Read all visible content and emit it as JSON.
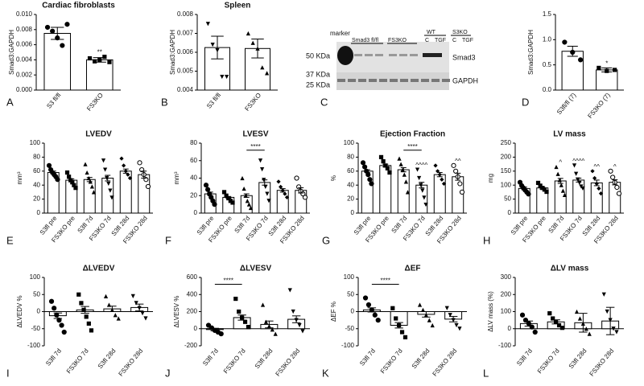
{
  "chart_data": [
    {
      "type": "bar",
      "panel": "A",
      "title": "Cardiac fibroblasts",
      "ylabel": "Smad3:GAPDH",
      "categories": [
        "S3 fl/fl",
        "FS3KO"
      ],
      "values": [
        0.0075,
        0.004
      ],
      "errors": [
        0.0008,
        0.0003
      ],
      "points": [
        [
          0.0083,
          0.0078,
          0.0069,
          0.0059,
          0.0087
        ],
        [
          0.0042,
          0.0038,
          0.004,
          0.0044,
          0.0037
        ]
      ],
      "markers": [
        "circle",
        "square"
      ],
      "sig": [
        null,
        "**"
      ],
      "ylim": [
        0,
        0.01
      ],
      "yticks": [
        {
          "value": 0,
          "label": "0.000"
        },
        {
          "value": 0.002,
          "label": "0.002"
        },
        {
          "value": 0.004,
          "label": "0.004"
        },
        {
          "value": 0.006,
          "label": "0.006"
        },
        {
          "value": 0.008,
          "label": "0.008"
        },
        {
          "value": 0.01,
          "label": "0.010"
        }
      ]
    },
    {
      "type": "bar",
      "panel": "B",
      "title": "Spleen",
      "ylabel": "Smad3:GAPDH",
      "categories": [
        "S3 fl/fl",
        "FS3KO"
      ],
      "values": [
        0.00625,
        0.0062
      ],
      "errors": [
        0.0006,
        0.0005
      ],
      "points": [
        [
          0.0075,
          0.0064,
          0.0061,
          0.0047,
          0.0047
        ],
        [
          0.007,
          0.0065,
          0.0062,
          0.0052,
          0.0049
        ]
      ],
      "markers": [
        "triangle-down",
        "triangle"
      ],
      "ylim": [
        0.004,
        0.008
      ],
      "yticks": [
        0.004,
        0.005,
        0.006,
        0.007,
        0.008
      ]
    },
    {
      "type": "bar",
      "panel": "D",
      "ylabel": "Smad3:GAPDH",
      "categories": [
        "S3fl/fl (7)",
        "FS3KO (7)"
      ],
      "values": [
        0.77,
        0.4
      ],
      "errors": [
        0.1,
        0.04
      ],
      "points": [
        [
          0.95,
          0.75,
          0.6
        ],
        [
          0.44,
          0.38,
          0.4
        ]
      ],
      "markers": [
        "circle",
        "square"
      ],
      "sig": [
        null,
        "*"
      ],
      "ylim": [
        0,
        1.5
      ],
      "yticks": [
        {
          "value": 0,
          "label": "0.0"
        },
        0.5,
        {
          "value": 1,
          "label": "1.0"
        },
        1.5
      ]
    },
    {
      "type": "bar",
      "panel": "E",
      "title": "LVEDV",
      "ylabel": "mm³",
      "categories": [
        "S3fl pre",
        "FS3KO pre",
        "S3fl 7d",
        "FS3KO 7d",
        "S3fl 28d",
        "FS3KO 28d"
      ],
      "values": [
        58,
        47,
        48,
        50,
        60,
        55
      ],
      "errors": [
        2,
        2,
        3,
        4,
        3,
        5
      ],
      "points": [
        [
          68,
          62,
          58,
          55,
          52,
          48
        ],
        [
          58,
          52,
          47,
          44,
          40,
          36
        ],
        [
          70,
          58,
          50,
          45,
          38,
          30
        ],
        [
          75,
          62,
          50,
          42,
          32,
          22
        ],
        [
          78,
          68,
          60,
          55,
          50
        ],
        [
          72,
          62,
          55,
          48,
          38
        ]
      ],
      "markers": [
        "circle",
        "square",
        "triangle",
        "triangle-down",
        "diamond",
        "circle-open"
      ],
      "ylim": [
        0,
        100
      ],
      "yticks": [
        0,
        20,
        40,
        60,
        80,
        100
      ]
    },
    {
      "type": "bar",
      "panel": "F",
      "title": "LVESV",
      "ylabel": "mm³",
      "categories": [
        "S3fl pre",
        "FS3KO pre",
        "S3fl 7d",
        "FS3KO 7d",
        "S3fl 28d",
        "FS3KO 28d"
      ],
      "values": [
        22,
        18,
        20,
        35,
        26,
        26
      ],
      "errors": [
        2,
        1,
        2,
        3,
        2,
        3
      ],
      "points": [
        [
          32,
          27,
          22,
          18,
          14,
          10
        ],
        [
          24,
          20,
          17,
          14,
          12
        ],
        [
          40,
          28,
          20,
          14,
          10,
          6
        ],
        [
          60,
          50,
          38,
          30,
          22,
          14
        ],
        [
          36,
          30,
          26,
          22,
          18
        ],
        [
          40,
          30,
          25,
          22,
          18
        ]
      ],
      "markers": [
        "circle",
        "square",
        "triangle",
        "triangle-down",
        "diamond",
        "circle-open"
      ],
      "bracket": {
        "label": "****",
        "between": [
          2,
          3
        ]
      },
      "ylim": [
        0,
        80
      ],
      "yticks": [
        0,
        20,
        40,
        60,
        80
      ]
    },
    {
      "type": "bar",
      "panel": "G",
      "title": "Ejection Fraction",
      "ylabel": "%",
      "categories": [
        "S3fl pre",
        "FS3KO pre",
        "S3fl 7d",
        "FS3KO 7d",
        "S3fl 28d",
        "FS3KO 28d"
      ],
      "values": [
        60,
        68,
        62,
        40,
        55,
        52
      ],
      "errors": [
        2,
        2,
        3,
        4,
        3,
        5
      ],
      "points": [
        [
          72,
          66,
          60,
          55,
          48,
          42
        ],
        [
          80,
          74,
          68,
          64,
          58
        ],
        [
          78,
          70,
          62,
          55,
          45,
          30
        ],
        [
          62,
          50,
          40,
          32,
          22,
          12
        ],
        [
          68,
          60,
          55,
          48,
          42
        ],
        [
          68,
          60,
          52,
          42,
          30
        ]
      ],
      "markers": [
        "circle",
        "square",
        "triangle",
        "triangle-down",
        "diamond",
        "circle-open"
      ],
      "sig": [
        null,
        null,
        null,
        "^^^^",
        null,
        "^^"
      ],
      "bracket": {
        "label": "****",
        "between": [
          2,
          3
        ]
      },
      "ylim": [
        0,
        100
      ],
      "yticks": [
        0,
        20,
        40,
        60,
        80,
        100
      ]
    },
    {
      "type": "bar",
      "panel": "H",
      "title": "LV mass",
      "ylabel": "mg",
      "categories": [
        "S3fl pre",
        "FS3KO pre",
        "S3fl 7d",
        "FS3KO 7d",
        "S3fl 28d",
        "FS3KO 28d"
      ],
      "values": [
        88,
        90,
        115,
        118,
        108,
        110
      ],
      "errors": [
        5,
        4,
        9,
        7,
        10,
        9
      ],
      "points": [
        [
          110,
          98,
          90,
          82,
          75,
          68
        ],
        [
          108,
          98,
          90,
          84,
          76
        ],
        [
          165,
          140,
          118,
          100,
          80,
          65
        ],
        [
          170,
          140,
          120,
          108,
          95,
          88
        ],
        [
          150,
          125,
          105,
          88,
          70
        ],
        [
          150,
          128,
          110,
          92,
          70
        ]
      ],
      "markers": [
        "circle",
        "square",
        "triangle",
        "triangle-down",
        "diamond",
        "circle-open"
      ],
      "sig": [
        null,
        null,
        "^",
        "^^^^",
        "^^",
        "^"
      ],
      "ylim": [
        0,
        250
      ],
      "yticks": [
        0,
        50,
        100,
        150,
        200,
        250
      ]
    },
    {
      "type": "bar",
      "panel": "I",
      "title": "ΔLVEDV",
      "ylabel": "ΔLVEDV %",
      "categories": [
        "S3fl 7d",
        "FS3KO 7d",
        "S3fl 28d",
        "FS3KO 28d"
      ],
      "values": [
        -12,
        5,
        8,
        12
      ],
      "errors": [
        8,
        10,
        8,
        10
      ],
      "points": [
        [
          30,
          10,
          -10,
          -25,
          -40,
          -60
        ],
        [
          50,
          25,
          5,
          -15,
          -35,
          -55
        ],
        [
          45,
          20,
          5,
          -10,
          -20
        ],
        [
          45,
          25,
          10,
          -5,
          -20
        ]
      ],
      "markers": [
        "circle",
        "square",
        "triangle",
        "triangle-down"
      ],
      "ylim": [
        -100,
        100
      ],
      "yticks": [
        -100,
        -50,
        0,
        50,
        100
      ]
    },
    {
      "type": "bar",
      "panel": "J",
      "title": "ΔLVESV",
      "ylabel": "ΔLVESV %",
      "categories": [
        "S3fl 7d",
        "FS3KO 7d",
        "S3fl 28d",
        "FS3KO 28d"
      ],
      "values": [
        -10,
        130,
        50,
        110
      ],
      "errors": [
        15,
        30,
        40,
        40
      ],
      "points": [
        [
          40,
          10,
          -20,
          -40,
          -60
        ],
        [
          350,
          200,
          130,
          80,
          20
        ],
        [
          280,
          80,
          30,
          -10,
          -60
        ],
        [
          450,
          200,
          100,
          40,
          -30
        ]
      ],
      "markers": [
        "circle",
        "square",
        "triangle",
        "triangle-down"
      ],
      "bracket": {
        "label": "****",
        "between": [
          0,
          1
        ]
      },
      "ylim": [
        -200,
        600
      ],
      "yticks": [
        -200,
        0,
        200,
        400,
        600
      ]
    },
    {
      "type": "bar",
      "panel": "K",
      "title": "ΔEF",
      "ylabel": "ΔEF %",
      "categories": [
        "S3fl 7d",
        "FS3KO 7d",
        "S3fl 28d",
        "FS3KO 28d"
      ],
      "values": [
        5,
        -40,
        -8,
        -22
      ],
      "errors": [
        6,
        8,
        8,
        8
      ],
      "points": [
        [
          40,
          20,
          5,
          -10,
          -25
        ],
        [
          10,
          -20,
          -40,
          -60,
          -75
        ],
        [
          20,
          5,
          -10,
          -25,
          -40
        ],
        [
          10,
          -10,
          -25,
          -40,
          -50
        ]
      ],
      "markers": [
        "circle",
        "square",
        "triangle",
        "triangle-down"
      ],
      "bracket": {
        "label": "****",
        "between": [
          0,
          1
        ]
      },
      "ylim": [
        -100,
        100
      ],
      "yticks": [
        -100,
        -50,
        0,
        50,
        100
      ]
    },
    {
      "type": "bar",
      "panel": "L",
      "title": "ΔLV mass",
      "ylabel": "ΔLV mass (%)",
      "categories": [
        "S3fl 7d",
        "FS3KO 7d",
        "S3fl 28d",
        "FS3KO 28d"
      ],
      "values": [
        30,
        40,
        35,
        45
      ],
      "errors": [
        15,
        12,
        55,
        80
      ],
      "points": [
        [
          80,
          50,
          30,
          10,
          -20
        ],
        [
          90,
          60,
          40,
          20,
          5
        ],
        [
          100,
          60,
          30,
          0,
          -30
        ],
        [
          200,
          100,
          50,
          0,
          -20
        ]
      ],
      "markers": [
        "circle",
        "square",
        "triangle",
        "triangle-down"
      ],
      "ylim": [
        -100,
        300
      ],
      "yticks": [
        -100,
        0,
        100,
        200,
        300
      ]
    }
  ],
  "blot": {
    "panel": "C",
    "marker": "marker",
    "groups": [
      "Smad3 fl/fl",
      "FS3KO",
      "WT",
      "S3KO"
    ],
    "lanes": [
      "C",
      "TGF",
      "C",
      "TGF"
    ],
    "sizes": [
      "50 KDa",
      "37 KDa",
      "25 KDa"
    ],
    "proteins": [
      "Smad3",
      "GAPDH"
    ]
  }
}
